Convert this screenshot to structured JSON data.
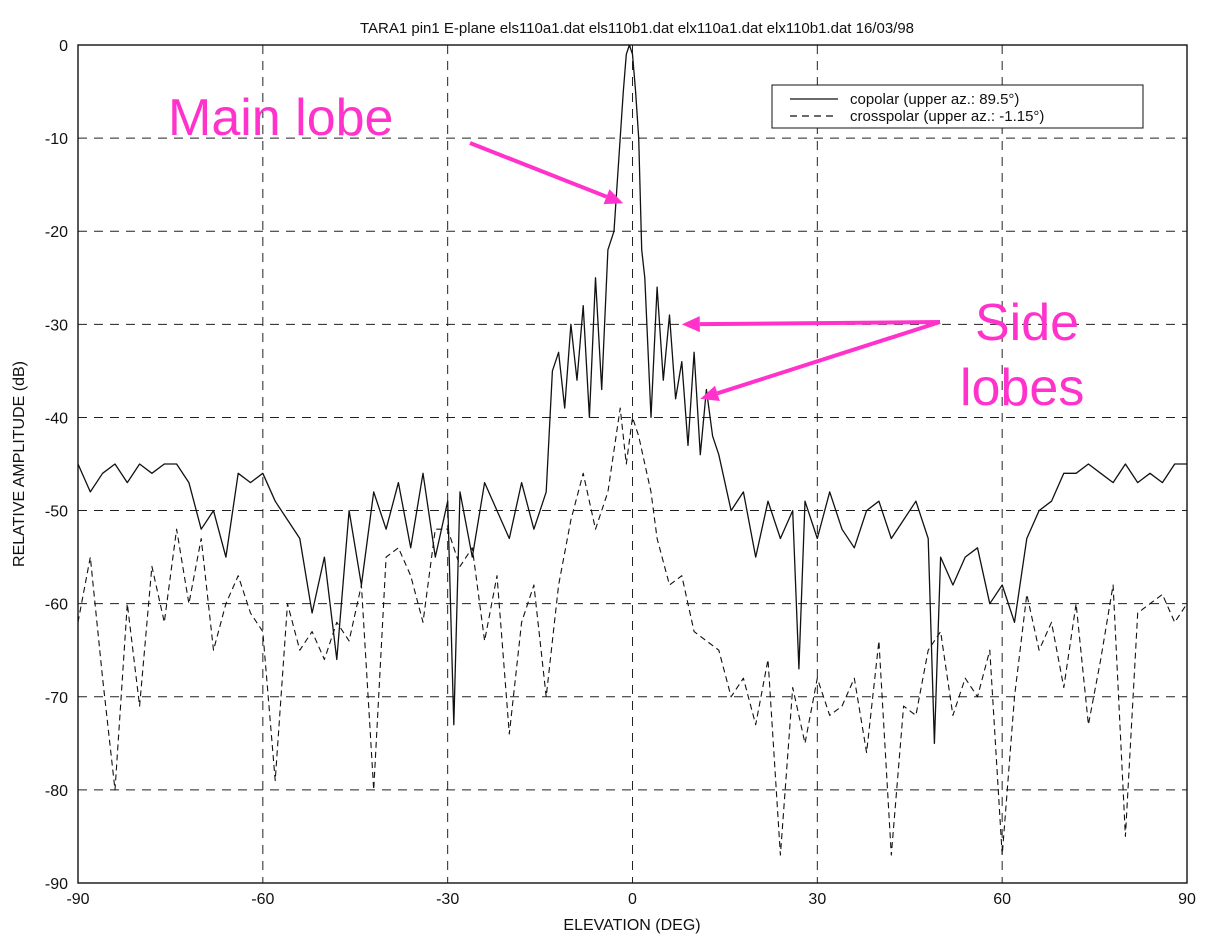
{
  "chart_data": {
    "type": "line",
    "title": "TARA1 pin1 E-plane els110a1.dat els110b1.dat elx110a1.dat elx110b1.dat 16/03/98",
    "xlabel": "ELEVATION (DEG)",
    "ylabel": "RELATIVE AMPLITUDE (dB)",
    "xlim": [
      -90,
      90
    ],
    "ylim": [
      -90,
      0
    ],
    "xticks": [
      "-90",
      "-60",
      "-30",
      "0",
      "30",
      "60",
      "90"
    ],
    "yticks": [
      "0",
      "-10",
      "-20",
      "-30",
      "-40",
      "-50",
      "-60",
      "-70",
      "-80",
      "-90"
    ],
    "grid": true,
    "legend_position": "top-right",
    "series": [
      {
        "name": "copolar (upper az.: 89.5°)",
        "style": "solid",
        "x": [
          -90,
          -88,
          -86,
          -84,
          -82,
          -80,
          -78,
          -76,
          -74,
          -72,
          -70,
          -68,
          -66,
          -64,
          -62,
          -60,
          -58,
          -56,
          -54,
          -52,
          -50,
          -48,
          -46,
          -44,
          -42,
          -40,
          -38,
          -36,
          -34,
          -32,
          -30,
          -29,
          -28,
          -26,
          -24,
          -22,
          -20,
          -18,
          -16,
          -14,
          -13,
          -12,
          -11,
          -10,
          -9,
          -8,
          -7,
          -6,
          -5,
          -4,
          -3,
          -2,
          -1.5,
          -1,
          -0.5,
          0,
          0.5,
          1,
          1.5,
          2,
          3,
          4,
          5,
          6,
          7,
          8,
          9,
          10,
          11,
          12,
          13,
          14,
          16,
          18,
          20,
          22,
          24,
          26,
          27,
          28,
          30,
          32,
          34,
          36,
          38,
          40,
          42,
          44,
          46,
          48,
          49,
          50,
          52,
          54,
          56,
          58,
          60,
          62,
          64,
          66,
          68,
          70,
          72,
          74,
          76,
          78,
          80,
          82,
          84,
          86,
          88,
          90
        ],
        "y": [
          -45,
          -48,
          -46,
          -45,
          -47,
          -45,
          -46,
          -45,
          -45,
          -47,
          -52,
          -50,
          -55,
          -46,
          -47,
          -46,
          -49,
          -51,
          -53,
          -61,
          -55,
          -66,
          -50,
          -58,
          -48,
          -52,
          -47,
          -54,
          -46,
          -55,
          -49,
          -73,
          -48,
          -55,
          -47,
          -50,
          -53,
          -47,
          -52,
          -48,
          -35,
          -33,
          -39,
          -30,
          -36,
          -28,
          -40,
          -25,
          -37,
          -22,
          -20,
          -10,
          -5,
          -1,
          0,
          -1,
          -5,
          -10,
          -22,
          -25,
          -40,
          -26,
          -36,
          -29,
          -38,
          -34,
          -43,
          -33,
          -44,
          -37,
          -42,
          -44,
          -50,
          -48,
          -55,
          -49,
          -53,
          -50,
          -67,
          -49,
          -53,
          -48,
          -52,
          -54,
          -50,
          -49,
          -53,
          -51,
          -49,
          -53,
          -75,
          -55,
          -58,
          -55,
          -54,
          -60,
          -58,
          -62,
          -53,
          -50,
          -49,
          -46,
          -46,
          -45,
          -46,
          -47,
          -45,
          -47,
          -46,
          -47,
          -45,
          -45
        ]
      },
      {
        "name": "crosspolar (upper az.: -1.15°)",
        "style": "dashed",
        "x": [
          -90,
          -88,
          -86,
          -84,
          -82,
          -80,
          -78,
          -76,
          -74,
          -72,
          -70,
          -68,
          -66,
          -64,
          -62,
          -60,
          -58,
          -56,
          -54,
          -52,
          -50,
          -48,
          -46,
          -44,
          -42,
          -40,
          -38,
          -36,
          -34,
          -32,
          -30,
          -28,
          -26,
          -24,
          -22,
          -20,
          -18,
          -16,
          -14,
          -12,
          -10,
          -8,
          -6,
          -4,
          -2,
          -1,
          0,
          1,
          2,
          3,
          4,
          6,
          8,
          10,
          12,
          14,
          16,
          18,
          20,
          22,
          24,
          26,
          28,
          30,
          32,
          34,
          36,
          38,
          40,
          42,
          44,
          46,
          48,
          50,
          52,
          54,
          56,
          58,
          60,
          62,
          64,
          66,
          68,
          70,
          72,
          74,
          76,
          78,
          80,
          82,
          84,
          86,
          88,
          90
        ],
        "y": [
          -62,
          -55,
          -68,
          -80,
          -60,
          -71,
          -56,
          -62,
          -52,
          -60,
          -53,
          -65,
          -60,
          -57,
          -61,
          -63,
          -79,
          -60,
          -65,
          -63,
          -66,
          -62,
          -64,
          -58,
          -80,
          -55,
          -54,
          -57,
          -62,
          -52,
          -52,
          -56,
          -54,
          -64,
          -57,
          -74,
          -62,
          -58,
          -70,
          -58,
          -51,
          -46,
          -52,
          -48,
          -39,
          -45,
          -40,
          -42,
          -45,
          -48,
          -53,
          -58,
          -57,
          -63,
          -64,
          -65,
          -70,
          -68,
          -73,
          -66,
          -87,
          -69,
          -75,
          -68,
          -72,
          -71,
          -68,
          -76,
          -64,
          -87,
          -71,
          -72,
          -65,
          -63,
          -72,
          -68,
          -70,
          -65,
          -87,
          -70,
          -59,
          -65,
          -62,
          -69,
          -60,
          -73,
          -66,
          -58,
          -85,
          -61,
          -60,
          -59,
          -62,
          -60
        ]
      }
    ],
    "annotations": [
      {
        "text": "Main lobe",
        "target_x": -1.5,
        "target_y": -17
      },
      {
        "text": "Side",
        "text_line2": "lobes",
        "targets": [
          [
            8,
            -30
          ],
          [
            11,
            -38
          ]
        ]
      }
    ]
  }
}
